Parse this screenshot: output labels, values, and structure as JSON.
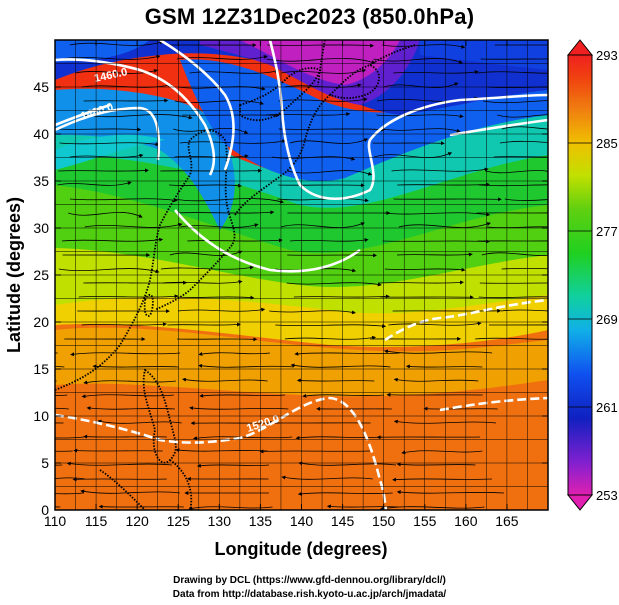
{
  "title": "GSM 12Z31Dec2023 (850.0hPa)",
  "x_axis": {
    "label": "Longitude (degrees)",
    "min": 110,
    "max": 170,
    "ticks": [
      110,
      115,
      120,
      125,
      130,
      135,
      140,
      145,
      150,
      155,
      160,
      165
    ]
  },
  "y_axis": {
    "label": "Latitude  (degrees)",
    "min": 0,
    "max": 50,
    "ticks": [
      0,
      5,
      10,
      15,
      20,
      25,
      30,
      35,
      40,
      45
    ]
  },
  "colorbar": {
    "min": 253,
    "max": 293,
    "ticks": [
      253,
      261,
      269,
      277,
      285,
      293
    ],
    "stops": [
      {
        "value": 253,
        "color": "#e020b0"
      },
      {
        "value": 256,
        "color": "#8020d0"
      },
      {
        "value": 260,
        "color": "#1020c0"
      },
      {
        "value": 264,
        "color": "#1050f0"
      },
      {
        "value": 268,
        "color": "#10b0e8"
      },
      {
        "value": 271,
        "color": "#10d0a0"
      },
      {
        "value": 275,
        "color": "#20d020"
      },
      {
        "value": 279,
        "color": "#60d010"
      },
      {
        "value": 282,
        "color": "#c0e000"
      },
      {
        "value": 285,
        "color": "#f0c000"
      },
      {
        "value": 288,
        "color": "#f08010"
      },
      {
        "value": 291,
        "color": "#f04010"
      },
      {
        "value": 293,
        "color": "#f02020"
      }
    ]
  },
  "contour_labels": [
    "1460.0",
    "1480.0",
    "1520.0"
  ],
  "credits": [
    "Drawing by DCL (https://www.gfd-dennou.org/library/dcl/)",
    "Data from http://database.rish.kyoto-u.ac.jp/arch/jmadata/"
  ],
  "colors": {
    "axis": "#000000",
    "contour": "#ffffff",
    "coastline": "#000000",
    "streamline": "#000000"
  }
}
